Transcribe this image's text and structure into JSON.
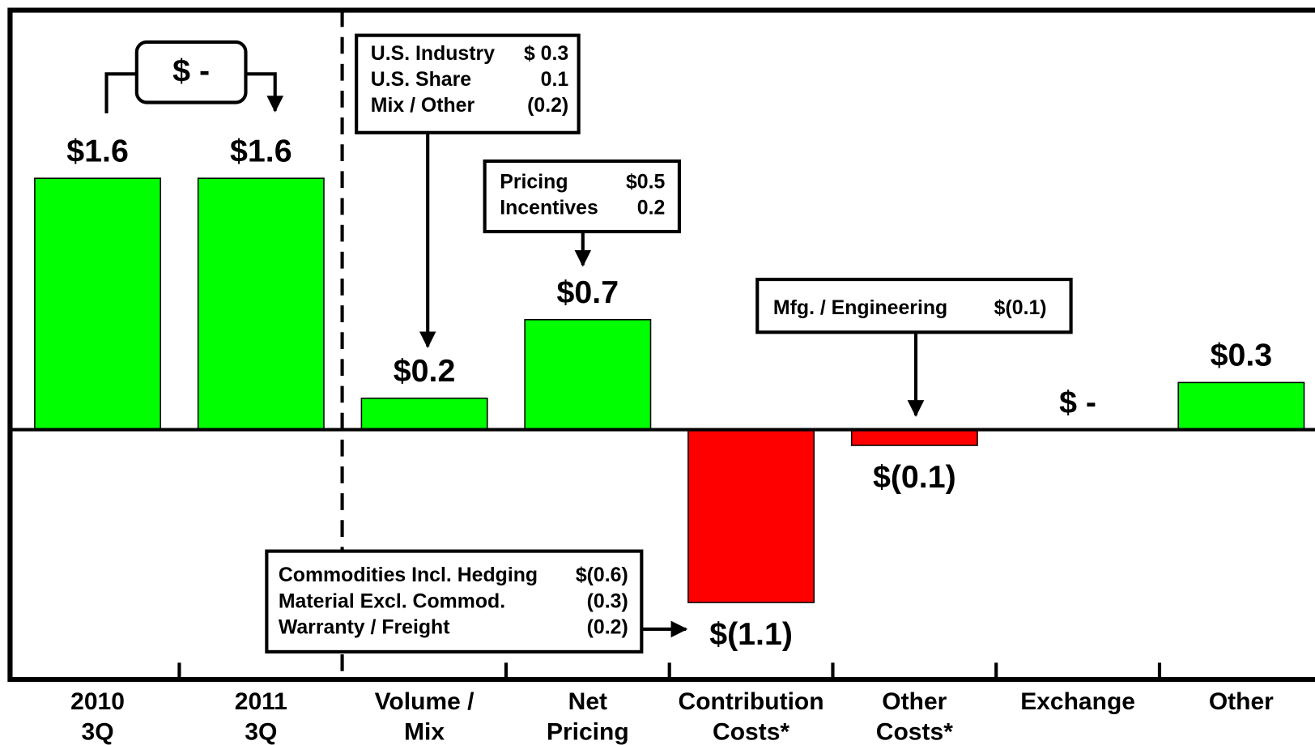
{
  "chart_data": {
    "type": "bar",
    "categories": [
      [
        "2010",
        "3Q"
      ],
      [
        "2011",
        "3Q"
      ],
      [
        "Volume /",
        "Mix"
      ],
      [
        "Net",
        "Pricing"
      ],
      [
        "Contribution",
        "Costs*"
      ],
      [
        "Other",
        "Costs*"
      ],
      [
        "Exchange"
      ],
      [
        "Other"
      ]
    ],
    "values": [
      1.6,
      1.6,
      0.2,
      0.7,
      -1.1,
      -0.1,
      0,
      0.3
    ],
    "value_labels": [
      "$1.6",
      "$1.6",
      "$0.2",
      "$0.7",
      "$(1.1)",
      "$(0.1)",
      "$ -",
      "$0.3"
    ],
    "colors": [
      "#00ff00",
      "#00ff00",
      "#00ff00",
      "#00ff00",
      "#ff0000",
      "#ff0000",
      "#00ff00",
      "#00ff00"
    ],
    "ylim": [
      -1.59,
      2.67
    ],
    "annotations": [
      {
        "rows": [
          [
            "U.S. Industry",
            "$ 0.3"
          ],
          [
            "U.S. Share",
            "0.1"
          ],
          [
            "Mix / Other",
            "(0.2)"
          ]
        ]
      },
      {
        "rows": [
          [
            "Pricing",
            "$0.5"
          ],
          [
            "Incentives",
            "0.2"
          ]
        ]
      },
      {
        "rows": [
          [
            "Mfg. / Engineering",
            "$(0.1)"
          ]
        ]
      },
      {
        "rows": [
          [
            "Commodities Incl. Hedging",
            "$(0.6)"
          ],
          [
            "Material Excl. Commod.",
            "(0.3)"
          ],
          [
            "Warranty / Freight",
            "(0.2)"
          ]
        ]
      }
    ],
    "bridge_label": "$ -"
  }
}
